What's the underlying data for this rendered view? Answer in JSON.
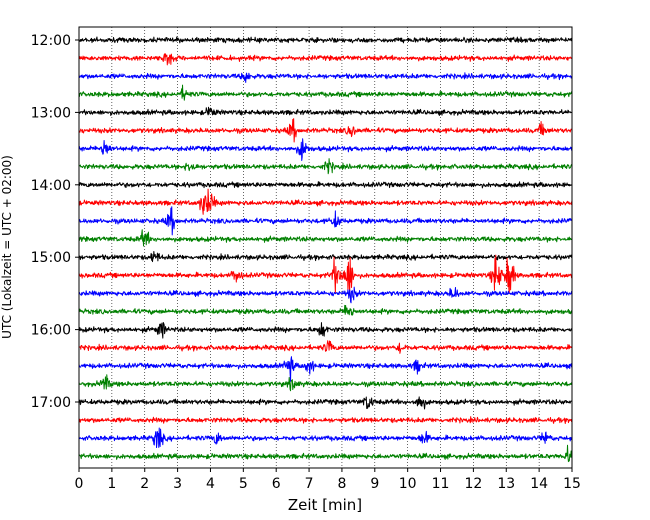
{
  "chart_data": {
    "type": "line",
    "title": "",
    "xlabel": "Zeit  [min]",
    "ylabel": "UTC (Lokalzeit = UTC + 02:00)",
    "x_ticks": [
      0,
      1,
      2,
      3,
      4,
      5,
      6,
      7,
      8,
      9,
      10,
      11,
      12,
      13,
      14,
      15
    ],
    "xlim": [
      0,
      15
    ],
    "y_ticks": [
      "12:00",
      "13:00",
      "14:00",
      "15:00",
      "16:00",
      "17:00"
    ],
    "grid": "vertical dotted lines",
    "trace_interval_minutes": 15,
    "trace_colors": [
      "#000000",
      "#ff0000",
      "#0000ff",
      "#008000"
    ],
    "traces": [
      {
        "start": "12:00",
        "color": "#000000",
        "events": []
      },
      {
        "start": "12:15",
        "color": "#ff0000",
        "events": [
          [
            2.7,
            0.9
          ]
        ]
      },
      {
        "start": "12:30",
        "color": "#0000ff",
        "events": [
          [
            5.1,
            0.6
          ]
        ]
      },
      {
        "start": "12:45",
        "color": "#008000",
        "events": [
          [
            3.2,
            0.6
          ]
        ]
      },
      {
        "start": "13:00",
        "color": "#000000",
        "events": [
          [
            4.0,
            0.5
          ]
        ]
      },
      {
        "start": "13:15",
        "color": "#ff0000",
        "events": [
          [
            6.5,
            1.0
          ],
          [
            8.3,
            0.6
          ],
          [
            14.1,
            0.6
          ]
        ]
      },
      {
        "start": "13:30",
        "color": "#0000ff",
        "events": [
          [
            0.8,
            1.0
          ],
          [
            6.8,
            1.2
          ]
        ]
      },
      {
        "start": "13:45",
        "color": "#008000",
        "events": [
          [
            3.4,
            0.6
          ],
          [
            7.6,
            0.6
          ]
        ]
      },
      {
        "start": "14:00",
        "color": "#000000",
        "events": []
      },
      {
        "start": "14:15",
        "color": "#ff0000",
        "events": [
          [
            3.8,
            1.2
          ],
          [
            4.0,
            1.0
          ]
        ]
      },
      {
        "start": "14:30",
        "color": "#0000ff",
        "events": [
          [
            2.8,
            1.2
          ],
          [
            7.8,
            0.7
          ]
        ]
      },
      {
        "start": "14:45",
        "color": "#008000",
        "events": [
          [
            2.0,
            0.9
          ]
        ]
      },
      {
        "start": "15:00",
        "color": "#000000",
        "events": [
          [
            2.3,
            0.6
          ]
        ]
      },
      {
        "start": "15:15",
        "color": "#ff0000",
        "events": [
          [
            4.8,
            0.8
          ],
          [
            7.8,
            1.6
          ],
          [
            8.2,
            2.6
          ],
          [
            12.7,
            2.2
          ],
          [
            13.1,
            2.4
          ]
        ]
      },
      {
        "start": "15:30",
        "color": "#0000ff",
        "events": [
          [
            8.3,
            0.7
          ],
          [
            11.4,
            0.6
          ]
        ]
      },
      {
        "start": "15:45",
        "color": "#008000",
        "events": [
          [
            8.2,
            0.9
          ]
        ]
      },
      {
        "start": "16:00",
        "color": "#000000",
        "events": [
          [
            2.5,
            0.8
          ],
          [
            7.4,
            0.8
          ]
        ]
      },
      {
        "start": "16:15",
        "color": "#ff0000",
        "events": [
          [
            7.6,
            0.6
          ],
          [
            9.8,
            0.5
          ]
        ]
      },
      {
        "start": "16:30",
        "color": "#0000ff",
        "events": [
          [
            6.4,
            1.2
          ],
          [
            7.0,
            0.8
          ],
          [
            10.3,
            0.6
          ]
        ]
      },
      {
        "start": "16:45",
        "color": "#008000",
        "events": [
          [
            0.8,
            0.7
          ],
          [
            6.5,
            0.6
          ]
        ]
      },
      {
        "start": "17:00",
        "color": "#000000",
        "events": [
          [
            8.8,
            0.8
          ],
          [
            10.4,
            0.9
          ]
        ]
      },
      {
        "start": "17:15",
        "color": "#ff0000",
        "events": []
      },
      {
        "start": "17:30",
        "color": "#0000ff",
        "events": [
          [
            2.4,
            1.3
          ],
          [
            4.2,
            0.6
          ],
          [
            10.5,
            0.6
          ],
          [
            14.2,
            0.6
          ]
        ]
      },
      {
        "start": "17:45",
        "color": "#008000",
        "events": [
          [
            14.9,
            0.8
          ]
        ]
      }
    ]
  }
}
